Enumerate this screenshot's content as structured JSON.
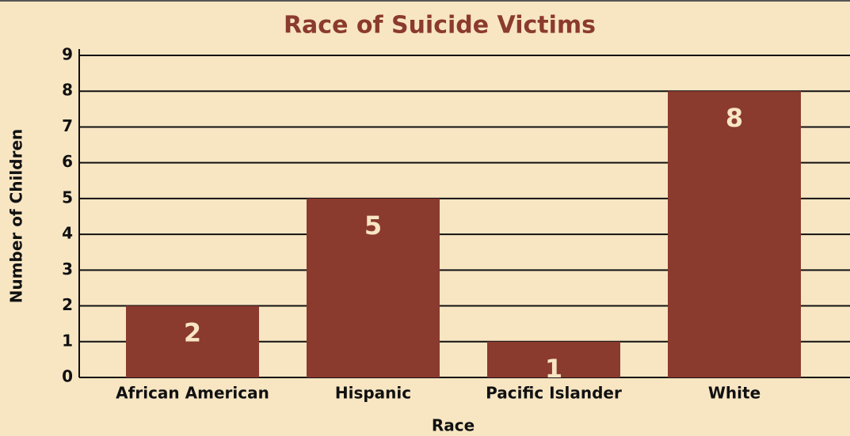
{
  "chart_data": {
    "type": "bar",
    "title": "Race of Suicide Victims",
    "x_label": "Race",
    "y_label": "Number of Children",
    "categories": [
      "African American",
      "Hispanic",
      "Pacific Islander",
      "White"
    ],
    "values": [
      2,
      5,
      1,
      8
    ],
    "color": "#8b3a2e",
    "ylim": [
      0,
      9
    ],
    "yticks": [
      0,
      1,
      2,
      3,
      4,
      5,
      6,
      7,
      8,
      9
    ],
    "grid": true
  }
}
